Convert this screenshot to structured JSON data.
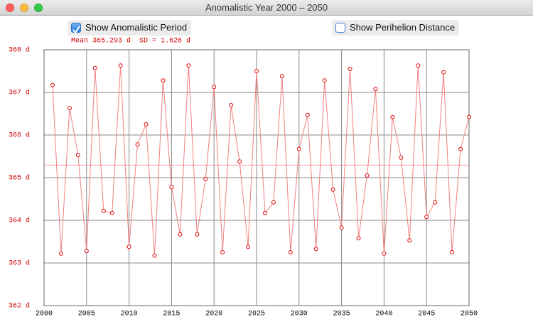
{
  "window_title": "Anomalistic Year 2000 – 2050",
  "checkboxes": [
    {
      "label": "Show Anomalistic Period",
      "checked": true
    },
    {
      "label": "Show Perihelion Distance",
      "checked": false
    }
  ],
  "chart_data": {
    "type": "line",
    "annotation": "Mean 365.293 d  SD = 1.626 d",
    "mean_line": 365.293,
    "line_color": "#f08080",
    "marker_color": "#e00000",
    "mean_color": "#f4a0a0",
    "x": [
      2001,
      2002,
      2003,
      2004,
      2005,
      2006,
      2007,
      2008,
      2009,
      2010,
      2011,
      2012,
      2013,
      2014,
      2015,
      2016,
      2017,
      2018,
      2019,
      2020,
      2021,
      2022,
      2023,
      2024,
      2025,
      2026,
      2027,
      2028,
      2029,
      2030,
      2031,
      2032,
      2033,
      2034,
      2035,
      2036,
      2037,
      2038,
      2039,
      2040,
      2041,
      2042,
      2043,
      2044,
      2045,
      2046,
      2047,
      2048,
      2049,
      2050
    ],
    "values": [
      367.17,
      363.22,
      366.63,
      365.53,
      363.28,
      367.57,
      364.22,
      364.17,
      367.63,
      363.38,
      365.78,
      366.25,
      363.17,
      367.28,
      364.78,
      363.67,
      367.63,
      363.67,
      364.97,
      367.13,
      363.25,
      366.7,
      365.38,
      363.38,
      367.5,
      364.17,
      364.42,
      367.38,
      363.25,
      365.67,
      366.47,
      363.33,
      367.28,
      364.72,
      363.83,
      367.55,
      363.58,
      365.05,
      367.08,
      363.22,
      366.42,
      365.47,
      363.53,
      367.63,
      364.08,
      364.42,
      367.47,
      363.25,
      365.67,
      366.42
    ],
    "xlim": [
      2000,
      2050
    ],
    "xticks": [
      2000,
      2005,
      2010,
      2015,
      2020,
      2025,
      2030,
      2035,
      2040,
      2045,
      2050
    ],
    "ylim": [
      362,
      368
    ],
    "yticks": [
      {
        "value": 362,
        "label": "362 d"
      },
      {
        "value": 363,
        "label": "363 d"
      },
      {
        "value": 364,
        "label": "364 d"
      },
      {
        "value": 365,
        "label": "365 d"
      },
      {
        "value": 366,
        "label": "366 d"
      },
      {
        "value": 367,
        "label": "367 d"
      },
      {
        "value": 368,
        "label": "368 d"
      }
    ],
    "grid": true
  }
}
